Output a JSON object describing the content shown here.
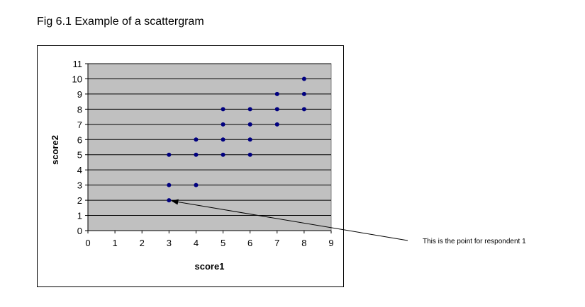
{
  "figure_title": "Fig 6.1 Example of a scattergram",
  "chart_data": {
    "type": "scatter",
    "xlabel": "score1",
    "ylabel": "score2",
    "xlim": [
      0,
      9
    ],
    "ylim": [
      0,
      11
    ],
    "x_ticks": [
      0,
      1,
      2,
      3,
      4,
      5,
      6,
      7,
      8,
      9
    ],
    "y_ticks": [
      0,
      1,
      2,
      3,
      4,
      5,
      6,
      7,
      8,
      9,
      10,
      11
    ],
    "grid": "horizontal",
    "plot_background": "#c0c0c0",
    "point_color": "#000080",
    "points": [
      {
        "x": 3,
        "y": 2
      },
      {
        "x": 3,
        "y": 3
      },
      {
        "x": 3,
        "y": 5
      },
      {
        "x": 4,
        "y": 3
      },
      {
        "x": 4,
        "y": 5
      },
      {
        "x": 4,
        "y": 6
      },
      {
        "x": 5,
        "y": 5
      },
      {
        "x": 5,
        "y": 6
      },
      {
        "x": 5,
        "y": 7
      },
      {
        "x": 5,
        "y": 8
      },
      {
        "x": 6,
        "y": 5
      },
      {
        "x": 6,
        "y": 6
      },
      {
        "x": 6,
        "y": 7
      },
      {
        "x": 6,
        "y": 8
      },
      {
        "x": 7,
        "y": 7
      },
      {
        "x": 7,
        "y": 8
      },
      {
        "x": 7,
        "y": 9
      },
      {
        "x": 8,
        "y": 8
      },
      {
        "x": 8,
        "y": 9
      },
      {
        "x": 8,
        "y": 10
      }
    ],
    "annotation": {
      "text": "This is the point for respondent 1",
      "target": {
        "x": 3,
        "y": 2
      }
    }
  }
}
